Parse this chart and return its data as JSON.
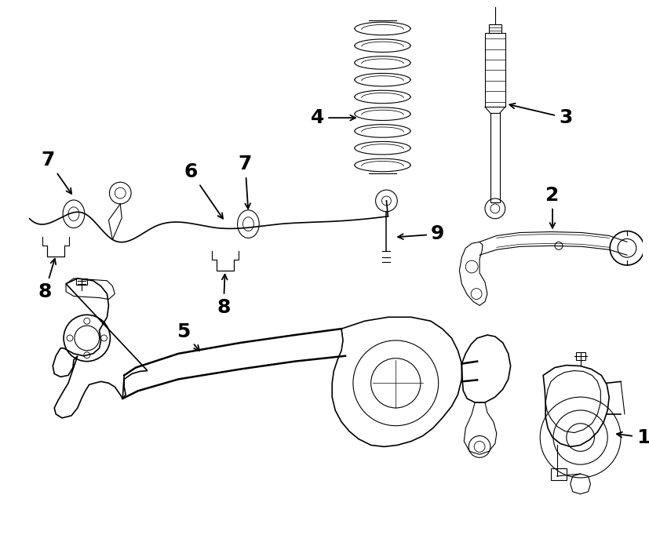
{
  "bg_color": "#ffffff",
  "line_color": "#000000",
  "fig_width": 8.28,
  "fig_height": 6.82,
  "dpi": 100,
  "title_fontsize": 14,
  "label_fontsize": 18
}
